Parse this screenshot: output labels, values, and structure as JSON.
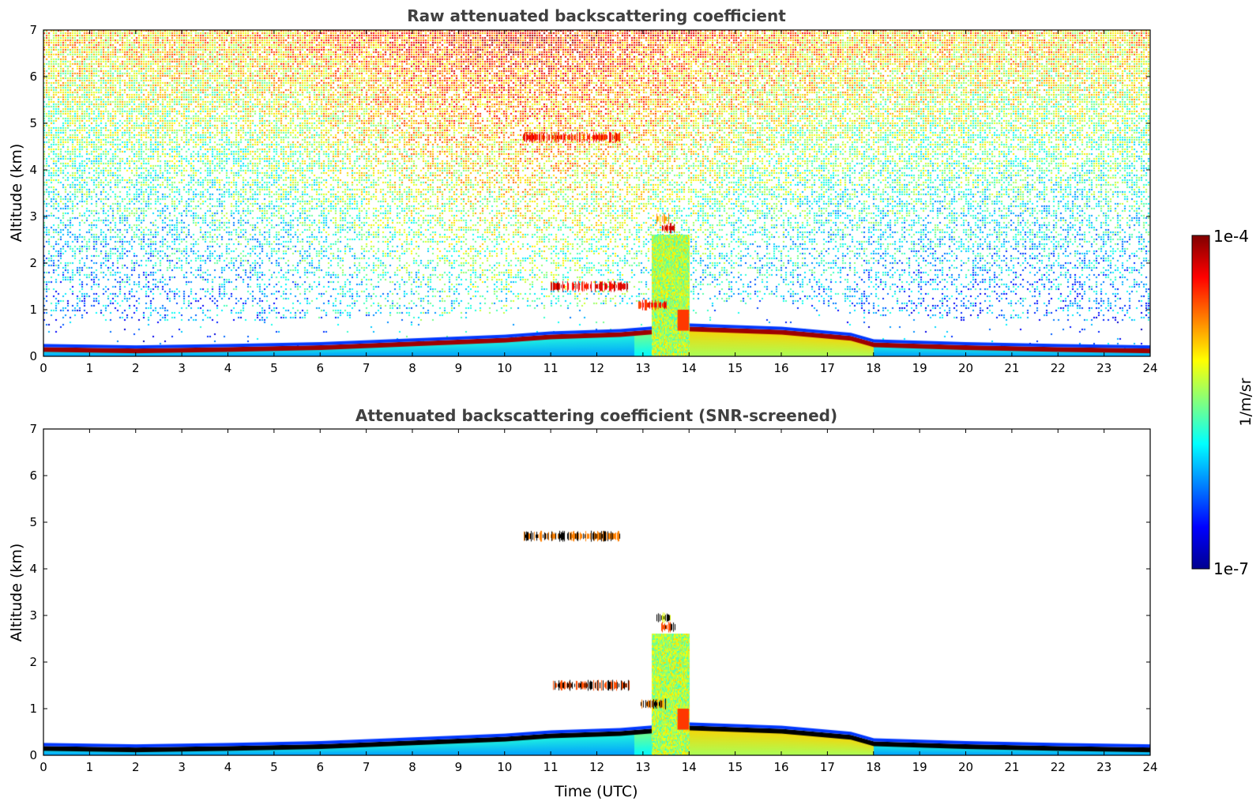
{
  "colors": {
    "jet": [
      "#00008f",
      "#0000ff",
      "#0080ff",
      "#00ffff",
      "#80ff80",
      "#ffff00",
      "#ff8000",
      "#ff0000",
      "#800000"
    ],
    "text": "#404040",
    "axis": "#000000"
  },
  "chart_data": [
    {
      "type": "heatmap",
      "title": "Raw attenuated backscattering coefficient",
      "xlabel": "",
      "ylabel": "Altitude (km)",
      "xlim": [
        0,
        24
      ],
      "ylim": [
        0,
        7
      ],
      "xticks": [
        "0",
        "1",
        "2",
        "3",
        "4",
        "5",
        "6",
        "7",
        "8",
        "9",
        "10",
        "11",
        "12",
        "13",
        "14",
        "15",
        "16",
        "17",
        "18",
        "19",
        "20",
        "21",
        "22",
        "23",
        "24"
      ],
      "yticks": [
        "0",
        "1",
        "2",
        "3",
        "4",
        "5",
        "6",
        "7"
      ],
      "boundary_layer_top_km": [
        {
          "x": 0,
          "y": 0.18
        },
        {
          "x": 2,
          "y": 0.15
        },
        {
          "x": 4,
          "y": 0.18
        },
        {
          "x": 6,
          "y": 0.22
        },
        {
          "x": 8,
          "y": 0.3
        },
        {
          "x": 10,
          "y": 0.38
        },
        {
          "x": 11,
          "y": 0.45
        },
        {
          "x": 12.5,
          "y": 0.5
        },
        {
          "x": 14.0,
          "y": 0.62
        },
        {
          "x": 16,
          "y": 0.55
        },
        {
          "x": 17.5,
          "y": 0.42
        },
        {
          "x": 18,
          "y": 0.28
        },
        {
          "x": 20,
          "y": 0.22
        },
        {
          "x": 22,
          "y": 0.18
        },
        {
          "x": 24,
          "y": 0.15
        }
      ],
      "cloud_layers": [
        {
          "x_start": 10.4,
          "x_end": 12.5,
          "y_km": 4.7,
          "level": 0.85
        },
        {
          "x_start": 11.0,
          "x_end": 12.7,
          "y_km": 1.5,
          "level": 0.9
        },
        {
          "x_start": 12.9,
          "x_end": 13.5,
          "y_km": 1.1,
          "level": 0.85
        },
        {
          "x_start": 13.3,
          "x_end": 13.6,
          "y_km": 2.95,
          "level": 0.7
        },
        {
          "x_start": 13.4,
          "x_end": 13.7,
          "y_km": 2.75,
          "level": 0.9
        }
      ],
      "column_feature": {
        "x_start": 13.2,
        "x_end": 14.0,
        "y_top_km": 2.6,
        "level": 0.55
      }
    },
    {
      "type": "heatmap",
      "title": "Attenuated backscattering coefficient (SNR-screened)",
      "xlabel": "Time (UTC)",
      "ylabel": "Altitude (km)",
      "xlim": [
        0,
        24
      ],
      "ylim": [
        0,
        7
      ],
      "xticks": [
        "0",
        "1",
        "2",
        "3",
        "4",
        "5",
        "6",
        "7",
        "8",
        "9",
        "10",
        "11",
        "12",
        "13",
        "14",
        "15",
        "16",
        "17",
        "18",
        "19",
        "20",
        "21",
        "22",
        "23",
        "24"
      ],
      "yticks": [
        "0",
        "1",
        "2",
        "3",
        "4",
        "5",
        "6",
        "7"
      ]
    }
  ],
  "colorbar": {
    "label": "1/m/sr",
    "max_label": "1e-4",
    "min_label": "1e-7",
    "scale": "log",
    "range": [
      1e-07,
      0.0001
    ]
  }
}
